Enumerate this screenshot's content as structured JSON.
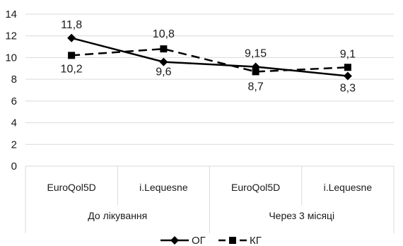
{
  "chart_data": {
    "type": "line",
    "categories": [
      {
        "label": "EuroQol5D",
        "group": "До лікування"
      },
      {
        "label": "i.Lequesne",
        "group": "До лікування"
      },
      {
        "label": "EuroQol5D",
        "group": "Через 3 місяці"
      },
      {
        "label": "i.Lequesne",
        "group": "Через 3 місяці"
      }
    ],
    "groups": [
      "До лікування",
      "Через 3 місяці"
    ],
    "series": [
      {
        "name": "ОГ",
        "values": [
          11.8,
          9.6,
          9.15,
          8.3
        ],
        "labels": [
          "11,8",
          "9,6",
          "9,15",
          "8,3"
        ],
        "style": "solid",
        "marker": "diamond",
        "color": "#000000"
      },
      {
        "name": "КГ",
        "values": [
          10.2,
          10.8,
          8.7,
          9.1
        ],
        "labels": [
          "10,2",
          "10,8",
          "8,7",
          "9,1"
        ],
        "style": "dashed",
        "marker": "square",
        "color": "#000000"
      }
    ],
    "yticks": [
      "0",
      "2",
      "4",
      "6",
      "8",
      "10",
      "12",
      "14"
    ],
    "ylim": [
      0,
      14
    ],
    "grid": true,
    "legend": "bottom",
    "title": "",
    "xlabel": "",
    "ylabel": ""
  }
}
